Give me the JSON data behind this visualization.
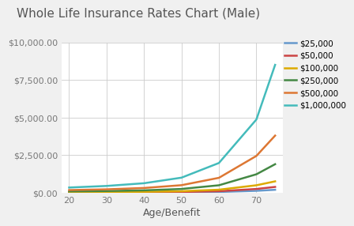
{
  "title": "Whole Life Insurance Rates Chart (Male)",
  "xlabel": "Age/Benefit",
  "ages": [
    20,
    30,
    40,
    50,
    60,
    70,
    75
  ],
  "series": [
    {
      "label": "$25,000",
      "color": "#6699CC",
      "values": [
        13,
        15,
        19,
        29,
        55,
        130,
        200
      ]
    },
    {
      "label": "$50,000",
      "color": "#CC4444",
      "values": [
        22,
        27,
        36,
        55,
        105,
        255,
        390
      ]
    },
    {
      "label": "$100,000",
      "color": "#DDAA00",
      "values": [
        40,
        50,
        68,
        105,
        205,
        500,
        760
      ]
    },
    {
      "label": "$250,000",
      "color": "#448844",
      "values": [
        95,
        118,
        162,
        255,
        500,
        1230,
        1900
      ]
    },
    {
      "label": "$500,000",
      "color": "#DD7733",
      "values": [
        180,
        230,
        320,
        505,
        995,
        2450,
        3800
      ]
    },
    {
      "label": "$1,000,000",
      "color": "#44BBBB",
      "values": [
        350,
        455,
        635,
        1005,
        1980,
        4870,
        8500
      ]
    }
  ],
  "ylim": [
    0,
    10000
  ],
  "yticks": [
    0,
    2500,
    5000,
    7500,
    10000
  ],
  "ytick_labels": [
    "$0.00",
    "$2,500.00",
    "$5,000.00",
    "$7,500.00",
    "$10,000.00"
  ],
  "xticks": [
    20,
    30,
    40,
    50,
    60,
    70
  ],
  "background_color": "#f0f0f0",
  "plot_background_color": "#ffffff",
  "title_fontsize": 11,
  "axis_fontsize": 8,
  "legend_fontsize": 7.5
}
